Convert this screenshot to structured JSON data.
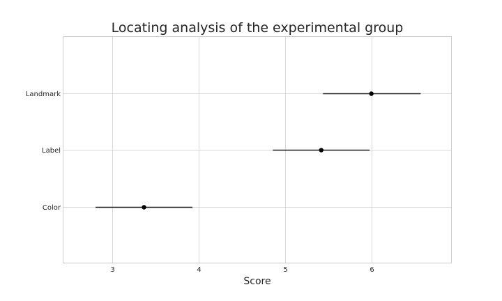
{
  "chart_data": {
    "type": "pointrange",
    "title": "Locating analysis of the experimental group",
    "xlabel": "Score",
    "ylabel": "",
    "xlim": [
      2.43,
      6.93
    ],
    "x_ticks": [
      3,
      4,
      5,
      6
    ],
    "categories": [
      "Landmark",
      "Label",
      "Color"
    ],
    "points": [
      {
        "category": "Landmark",
        "value": 6.0,
        "lower": 5.44,
        "upper": 6.57
      },
      {
        "category": "Label",
        "value": 5.42,
        "lower": 4.86,
        "upper": 5.98
      },
      {
        "category": "Color",
        "value": 3.37,
        "lower": 2.81,
        "upper": 3.93
      }
    ],
    "grid": true,
    "legend": "none"
  }
}
